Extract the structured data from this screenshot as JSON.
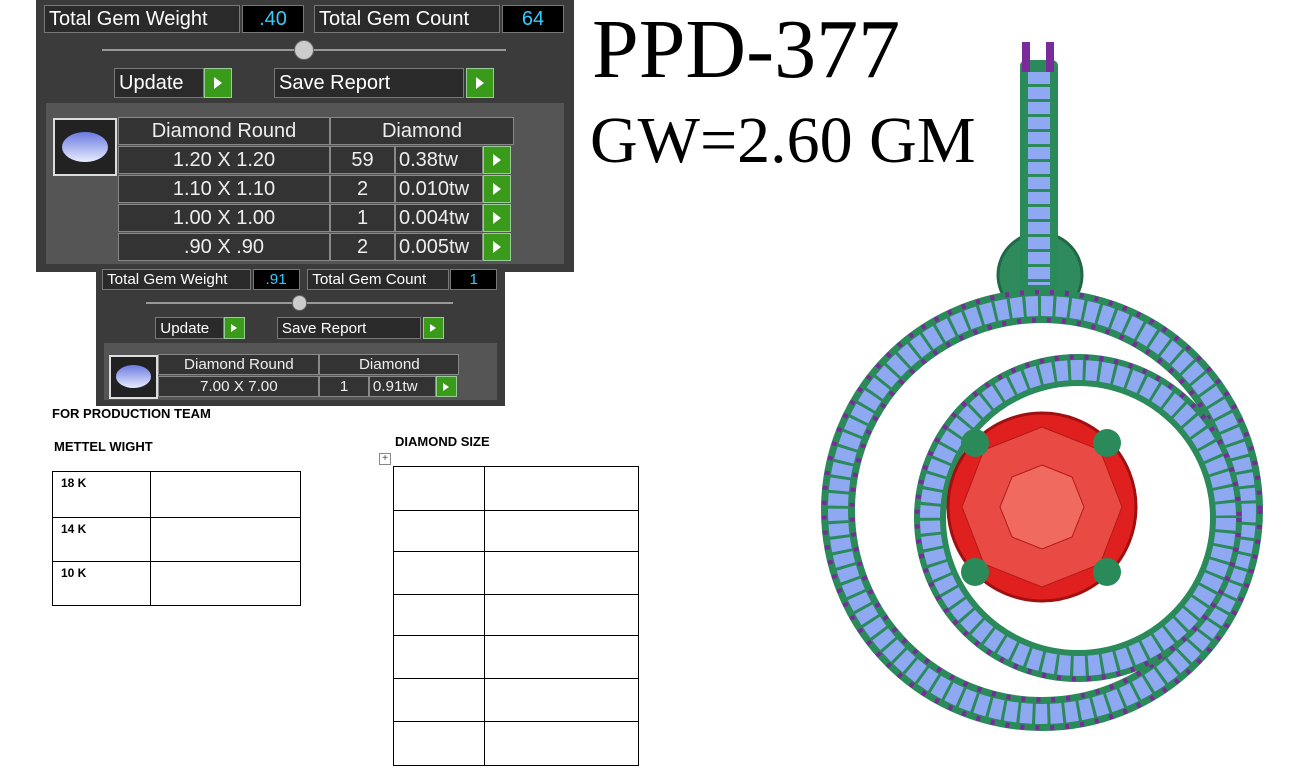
{
  "title": "PPD-377",
  "subtitle": "GW=2.60 GM",
  "panels": [
    {
      "total_gem_weight_label": "Total Gem Weight",
      "total_gem_weight": ".40",
      "total_gem_count_label": "Total Gem Count",
      "total_gem_count": "64",
      "update": "Update",
      "save_report": "Save Report",
      "headers": [
        "Diamond Round",
        "Diamond"
      ],
      "rows": [
        [
          "1.20 X 1.20",
          "59",
          "0.38tw"
        ],
        [
          "1.10 X 1.10",
          "2",
          "0.010tw"
        ],
        [
          "1.00 X 1.00",
          "1",
          "0.004tw"
        ],
        [
          ".90 X .90",
          "2",
          "0.005tw"
        ]
      ]
    },
    {
      "total_gem_weight_label": "Total Gem Weight",
      "total_gem_weight": ".91",
      "total_gem_count_label": "Total Gem Count",
      "total_gem_count": "1",
      "update": "Update",
      "save_report": "Save Report",
      "headers": [
        "Diamond Round",
        "Diamond"
      ],
      "rows": [
        [
          "7.00 X 7.00",
          "1",
          "0.91tw"
        ]
      ]
    }
  ],
  "production": {
    "heading": "FOR PRODUCTION TEAM",
    "metal_heading": "METTEL WIGHT",
    "metal_rows": [
      "18 K",
      "14 K",
      "10 K"
    ],
    "diamond_heading": "DIAMOND SIZE"
  }
}
